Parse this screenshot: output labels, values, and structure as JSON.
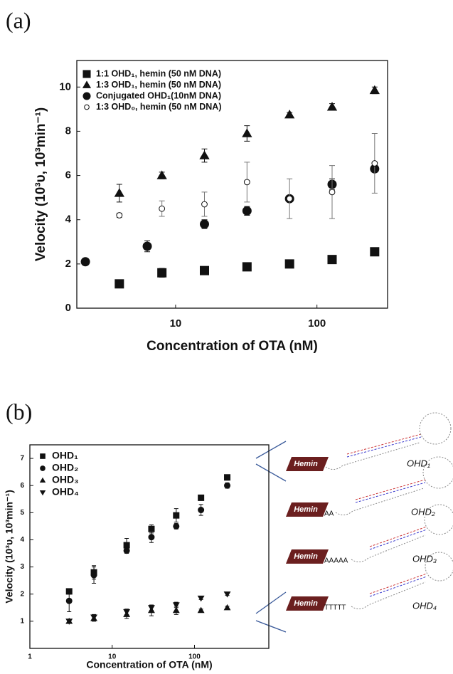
{
  "panel_labels": [
    "(a)",
    "(b)"
  ],
  "chart_data": [
    {
      "type": "scatter",
      "xscale": "log",
      "x_label": "Concentration of OTA (nM)",
      "y_label": "Velocity (10³υ, 10³min⁻¹)",
      "xlim": [
        2,
        316
      ],
      "xticks": [
        10,
        100
      ],
      "ylim": [
        0,
        11.2
      ],
      "yticks": [
        0,
        2,
        4,
        6,
        8,
        10
      ],
      "legend": "upper left",
      "series": [
        {
          "name": "1:1 OHD₁, hemin (50 nM DNA)",
          "marker": "square",
          "color": "#111111",
          "x": [
            4,
            8,
            16,
            32,
            64,
            128,
            256
          ],
          "values": [
            1.1,
            1.6,
            1.7,
            1.87,
            2.0,
            2.2,
            2.55
          ],
          "errors": [
            0.05,
            0.2,
            0.05,
            0.05,
            0.05,
            0.05,
            0.05
          ]
        },
        {
          "name": "1:3 OHD₁, hemin (50 nM DNA)",
          "marker": "triangle",
          "color": "#111111",
          "x": [
            4,
            8,
            16,
            32,
            64,
            128,
            256
          ],
          "values": [
            5.2,
            6.0,
            6.9,
            7.9,
            8.75,
            9.1,
            9.85
          ],
          "errors": [
            0.4,
            0.15,
            0.3,
            0.35,
            0.1,
            0.15,
            0.15
          ]
        },
        {
          "name": "Conjugated OHD₁(10nM DNA)",
          "marker": "circle",
          "color": "#111111",
          "x": [
            2.3,
            6.3,
            16,
            32,
            64,
            128,
            256
          ],
          "values": [
            2.1,
            2.8,
            3.8,
            4.4,
            4.95,
            5.6,
            6.3
          ],
          "errors": [
            0.05,
            0.25,
            0.2,
            0.2,
            0.1,
            0.25,
            0.1
          ]
        },
        {
          "name": "1:3 OHD₀, hemin (50 nM DNA)",
          "marker": "open-circle",
          "color": "#111111",
          "x": [
            4,
            8,
            16,
            32,
            64,
            128,
            256
          ],
          "values": [
            4.2,
            4.5,
            4.7,
            5.7,
            4.95,
            5.25,
            6.55
          ],
          "errors": [
            0.1,
            0.35,
            0.55,
            0.9,
            0.9,
            1.2,
            1.35
          ]
        }
      ]
    },
    {
      "type": "scatter",
      "xscale": "log",
      "x_label": "Concentration of OTA (nM)",
      "y_label": "Velocity (10³υ, 10³min⁻¹)",
      "xlim": [
        1,
        800
      ],
      "xticks": [
        1,
        10,
        100
      ],
      "ylim": [
        0,
        7.5
      ],
      "yticks": [
        1,
        2,
        3,
        4,
        5,
        6,
        7
      ],
      "legend": "upper left",
      "series": [
        {
          "name": "OHD₁",
          "marker": "square",
          "color": "#111111",
          "x": [
            3,
            6,
            15,
            30,
            60,
            120,
            250
          ],
          "values": [
            2.1,
            2.8,
            3.8,
            4.4,
            4.9,
            5.55,
            6.3
          ],
          "errors": [
            0.1,
            0.25,
            0.25,
            0.15,
            0.25,
            0.1,
            0.1
          ]
        },
        {
          "name": "OHD₂",
          "marker": "circle",
          "color": "#111111",
          "x": [
            3,
            6,
            15,
            30,
            60,
            120,
            250
          ],
          "values": [
            1.75,
            2.7,
            3.6,
            4.1,
            4.5,
            5.1,
            6.0
          ],
          "errors": [
            0.4,
            0.3,
            0.1,
            0.2,
            0.1,
            0.2,
            0.1
          ]
        },
        {
          "name": "OHD₃",
          "marker": "triangle",
          "color": "#111111",
          "x": [
            3,
            6,
            15,
            30,
            60,
            120,
            250
          ],
          "values": [
            1.0,
            1.1,
            1.25,
            1.4,
            1.4,
            1.4,
            1.5
          ],
          "errors": [
            0.05,
            0.1,
            0.15,
            0.2,
            0.15,
            0.05,
            0.05
          ]
        },
        {
          "name": "OHD₄",
          "marker": "down-triangle",
          "color": "#111111",
          "x": [
            3,
            6,
            15,
            30,
            60,
            120,
            250
          ],
          "values": [
            1.0,
            1.15,
            1.35,
            1.5,
            1.6,
            1.85,
            2.0
          ],
          "errors": [
            0.05,
            0.1,
            0.1,
            0.1,
            0.1,
            0.05,
            0.05
          ]
        }
      ]
    }
  ],
  "diagram": {
    "items": [
      {
        "hemin": "Hemin",
        "name": "OHD₁"
      },
      {
        "hemin": "Hemin",
        "linker": "AA",
        "name": "OHD₂"
      },
      {
        "hemin": "Hemin",
        "linker": "AAAAA",
        "name": "OHD₃"
      },
      {
        "hemin": "Hemin",
        "linker": "TTTTT",
        "name": "OHD₄"
      }
    ]
  }
}
